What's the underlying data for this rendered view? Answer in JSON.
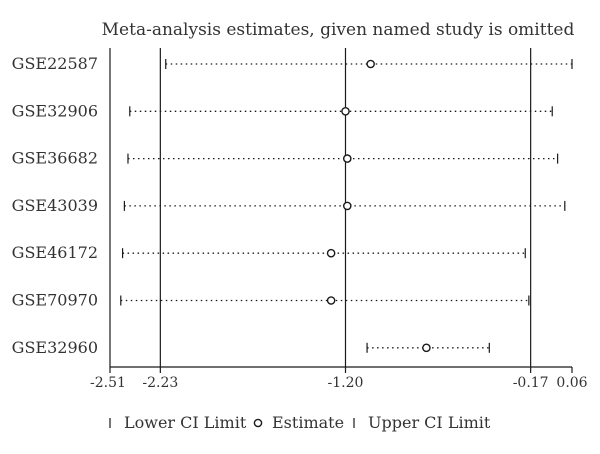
{
  "chart_data": {
    "type": "forest",
    "title": "Meta-analysis estimates, given named study is omitted",
    "studies": [
      "GSE22587",
      "GSE32906",
      "GSE36682",
      "GSE43039",
      "GSE46172",
      "GSE70970",
      "GSE32960"
    ],
    "lower": [
      -2.2,
      -2.4,
      -2.41,
      -2.43,
      -2.44,
      -2.45,
      -1.08
    ],
    "estimate": [
      -1.06,
      -1.2,
      -1.19,
      -1.19,
      -1.28,
      -1.28,
      -0.75
    ],
    "upper": [
      0.06,
      -0.05,
      -0.02,
      0.02,
      -0.2,
      -0.18,
      -0.4
    ],
    "reference_lines": [
      -2.23,
      -1.2,
      -0.17
    ],
    "xlim": [
      -2.51,
      0.06
    ],
    "xticks": [
      -2.51,
      -2.23,
      -1.2,
      -0.17,
      0.06
    ],
    "xtick_labels": [
      "-2.51",
      "-2.23",
      "-1.20",
      "-0.17",
      "0.06"
    ],
    "legend": {
      "position": "bottom",
      "items": [
        "Lower CI Limit",
        "Estimate",
        "Upper CI Limit"
      ]
    },
    "grid": false,
    "colors": {
      "line": "#1a1a1a",
      "text": "#333333"
    }
  }
}
